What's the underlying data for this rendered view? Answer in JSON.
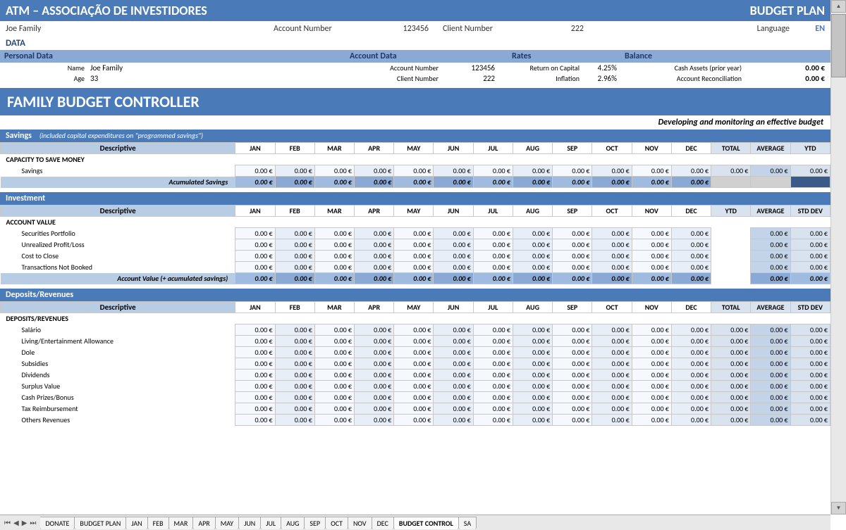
{
  "colors": {
    "primary": "#4a7ab8",
    "header_cell": "#b8cce4",
    "alt_cell": "#e8eef7",
    "light_cell": "#f5f8fc",
    "summary_cell": "#d9e2ef"
  },
  "title": {
    "main": "ATM – ASSOCIAÇÃO DE INVESTIDORES",
    "right": "BUDGET PLAN"
  },
  "header_info": {
    "client_name": "Joe Family",
    "account_number_label": "Account Number",
    "account_number": "123456",
    "client_number_label": "Client Number",
    "client_number": "222",
    "language_label": "Language",
    "language": "EN"
  },
  "data_label": "DATA",
  "sections": {
    "personal": {
      "title": "Personal Data",
      "name_label": "Name",
      "name": "Joe Family",
      "age_label": "Age",
      "age": "33"
    },
    "account": {
      "title": "Account Data",
      "acct_label": "Account Number",
      "acct": "123456",
      "client_label": "Client Number",
      "client": "222"
    },
    "rates": {
      "title": "Rates",
      "roc_label": "Return on Capital",
      "roc": "4.25%",
      "inf_label": "Inflation",
      "inf": "2.96%"
    },
    "balance": {
      "title": "Balance",
      "cash_label": "Cash Assets (prior year)",
      "cash": "0.00 €",
      "recon_label": "Account Reconciliation",
      "recon": "0.00 €"
    }
  },
  "banner": "FAMILY BUDGET CONTROLLER",
  "subtitle": "Developing and monitoring an effective budget",
  "months": [
    "JAN",
    "FEB",
    "MAR",
    "APR",
    "MAY",
    "JUN",
    "JUL",
    "AUG",
    "SEP",
    "OCT",
    "NOV",
    "DEC"
  ],
  "zero": "0.00 €",
  "savings": {
    "band_title": "Savings",
    "band_note": "(included capital expenditures on \"programmed savings\")",
    "descriptive": "Descriptive",
    "summary_cols": [
      "TOTAL",
      "AVERAGE",
      "YTD"
    ],
    "section_hdr": "CAPACITY TO SAVE MONEY",
    "rows": [
      "Savings"
    ],
    "total_label": "Acumulated Savings"
  },
  "investment": {
    "band_title": "Investment",
    "descriptive": "Descriptive",
    "summary_cols": [
      "YTD",
      "AVERAGE",
      "STD DEV"
    ],
    "section_hdr": "ACCOUNT VALUE",
    "rows": [
      "Securities Portfolio",
      "Unrealized Profit/Loss",
      "Cost to Close",
      "Transactions Not Booked"
    ],
    "total_label": "Account Value (+ acumulated savings)"
  },
  "deposits": {
    "band_title": "Deposits/Revenues",
    "descriptive": "Descriptive",
    "summary_cols": [
      "TOTAL",
      "AVERAGE",
      "STD DEV"
    ],
    "section_hdr": "DEPOSITS/REVENUES",
    "rows": [
      "Salário",
      "Living/Entertainment Allowance",
      "Dole",
      "Subsidies",
      "Dividends",
      "Surplus Value",
      "Cash Prizes/Bonus",
      "Tax Reimbursement",
      "Others Revenues"
    ]
  },
  "tabs": {
    "list": [
      "DONATE",
      "BUDGET PLAN",
      "JAN",
      "FEB",
      "MAR",
      "APR",
      "MAY",
      "JUN",
      "JUL",
      "AUG",
      "SEP",
      "OCT",
      "NOV",
      "DEC",
      "BUDGET CONTROL",
      "SA"
    ],
    "active_index": 14
  }
}
